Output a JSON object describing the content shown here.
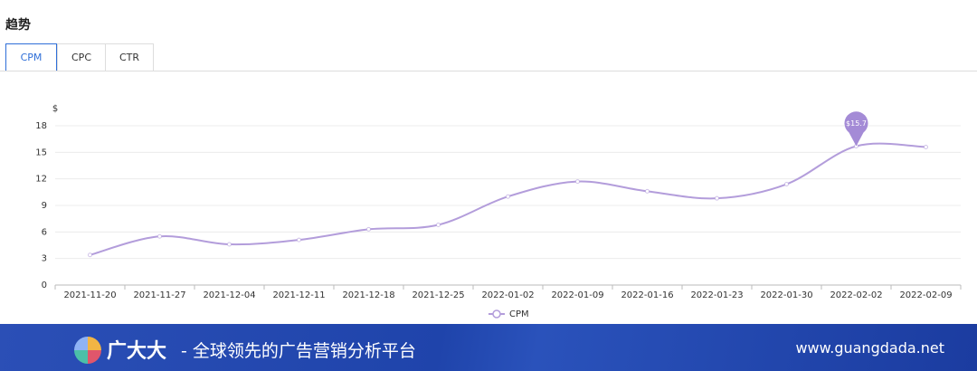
{
  "header": {
    "title": "趋势"
  },
  "tabs": [
    "CPM",
    "CPC",
    "CTR"
  ],
  "chart_data": {
    "type": "line",
    "y_label": "$",
    "categories": [
      "2021-11-20",
      "2021-11-27",
      "2021-12-04",
      "2021-12-11",
      "2021-12-18",
      "2021-12-25",
      "2022-01-02",
      "2022-01-09",
      "2022-01-16",
      "2022-01-23",
      "2022-01-30",
      "2022-02-02",
      "2022-02-09"
    ],
    "series": [
      {
        "name": "CPM",
        "color": "#b39ddb",
        "values": [
          3.4,
          5.5,
          4.6,
          5.1,
          6.3,
          6.8,
          10.0,
          11.7,
          10.6,
          9.8,
          11.4,
          15.7,
          15.6
        ]
      }
    ],
    "ylim": [
      0,
      18
    ],
    "yticks": [
      0,
      3,
      6,
      9,
      12,
      15,
      18
    ],
    "grid": true,
    "markpoint": {
      "category": "2022-02-02",
      "value": 15.7,
      "label": "$15.7",
      "color": "#a48bd6"
    }
  },
  "footer": {
    "brand": "广大大",
    "slogan": "- 全球领先的广告营销分析平台",
    "url": "www.guangdada.net"
  }
}
